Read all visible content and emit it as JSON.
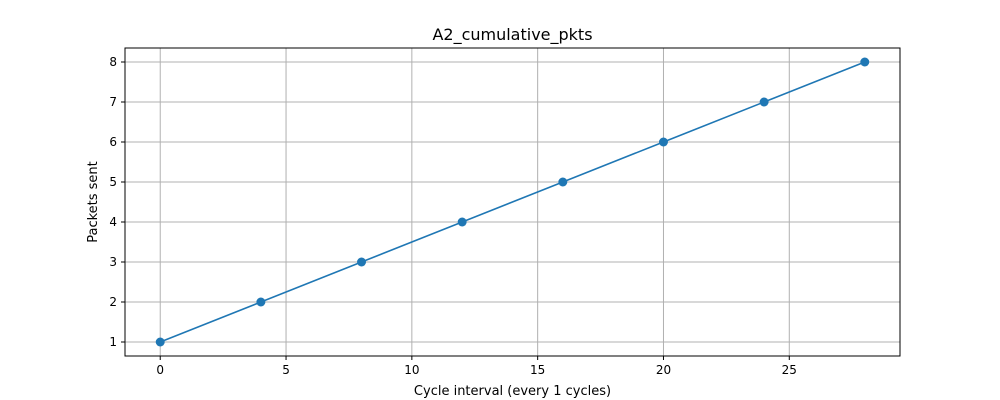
{
  "chart_data": {
    "type": "line",
    "title": "A2_cumulative_pkts",
    "xlabel": "Cycle interval (every 1 cycles)",
    "ylabel": "Packets sent",
    "xlim": [
      -1.4,
      29.4
    ],
    "ylim": [
      0.65,
      8.35
    ],
    "xticks": [
      0,
      5,
      10,
      15,
      20,
      25
    ],
    "yticks": [
      1,
      2,
      3,
      4,
      5,
      6,
      7,
      8
    ],
    "grid": true,
    "series": [
      {
        "x": [
          0,
          4,
          8,
          12,
          16,
          20,
          24,
          28
        ],
        "y": [
          1,
          2,
          3,
          4,
          5,
          6,
          7,
          8
        ],
        "color": "#1f77b4",
        "marker": "circle"
      }
    ]
  }
}
